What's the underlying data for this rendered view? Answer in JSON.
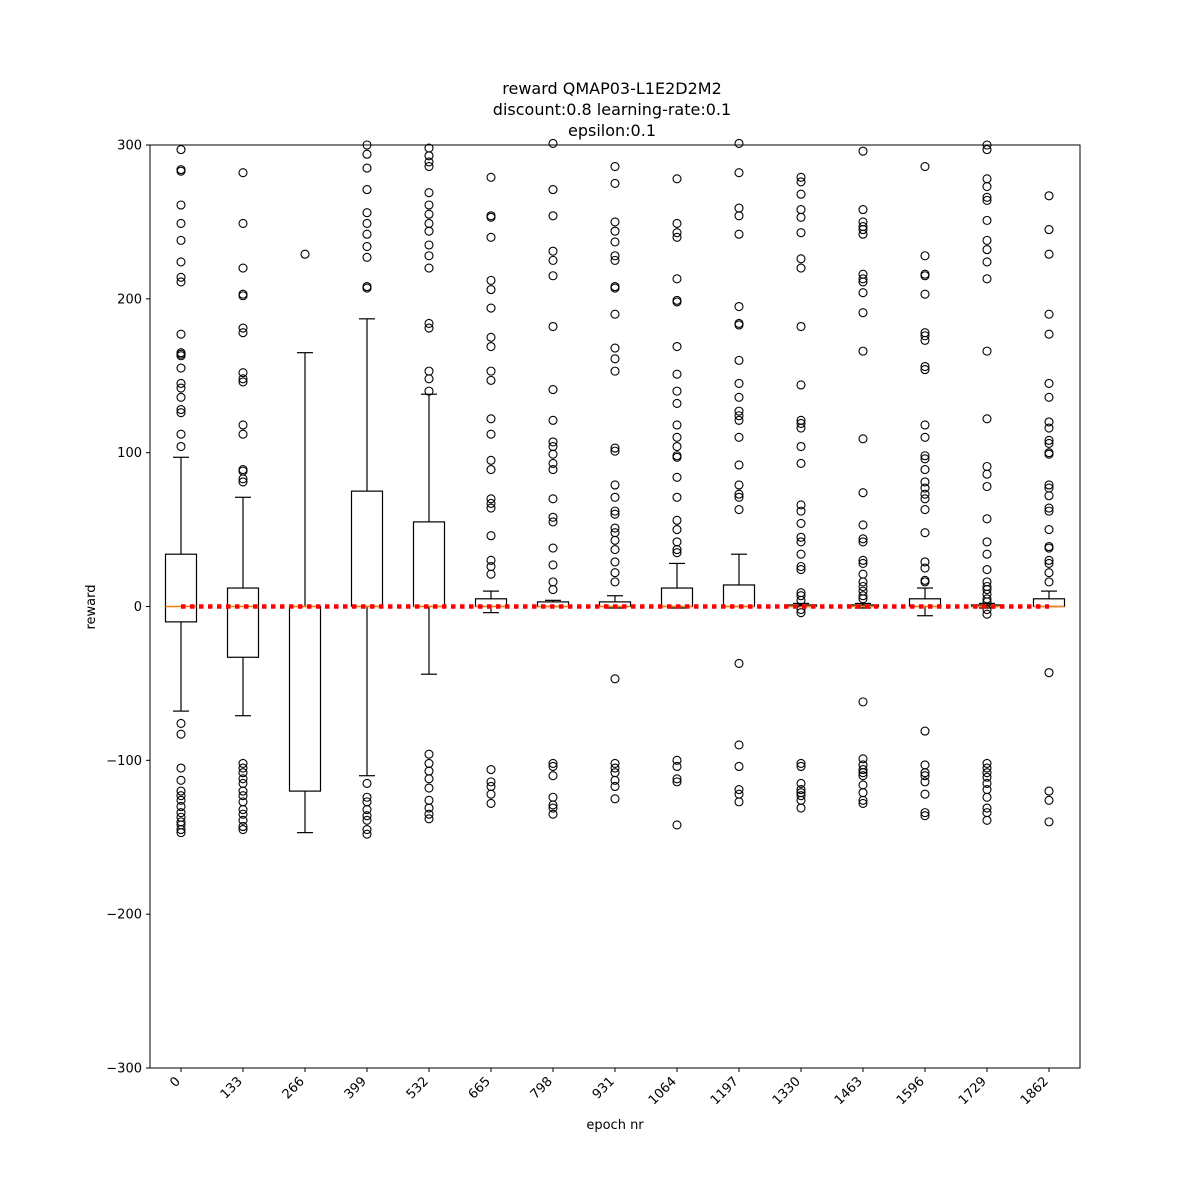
{
  "chart_data": {
    "type": "box",
    "title": [
      "reward QMAP03-L1E2D2M2",
      "discount:0.8 learning-rate:0.1",
      "epsilon:0.1"
    ],
    "xlabel": "epoch nr",
    "ylabel": "reward",
    "ylim": [
      -300,
      300
    ],
    "yticks": [
      -300,
      -200,
      -100,
      0,
      100,
      200,
      300
    ],
    "ytick_labels": [
      "−300",
      "−200",
      "−100",
      "0",
      "100",
      "200",
      "300"
    ],
    "categories": [
      "0",
      "133",
      "266",
      "399",
      "532",
      "665",
      "798",
      "931",
      "1064",
      "1197",
      "1330",
      "1463",
      "1596",
      "1729",
      "1862"
    ],
    "boxes": [
      {
        "q1": -10,
        "median": 0,
        "q3": 34,
        "whisker_low": -68,
        "whisker_high": 97,
        "fliers": [
          297,
          284,
          283,
          261,
          249,
          238,
          224,
          214,
          211,
          177,
          165,
          164,
          163,
          155,
          145,
          142,
          136,
          128,
          126,
          112,
          104,
          -76,
          -83,
          -105,
          -113,
          -120,
          -123,
          -126,
          -130,
          -134,
          -137,
          -140,
          -142,
          -145,
          -147
        ]
      },
      {
        "q1": -33,
        "median": 0,
        "q3": 12,
        "whisker_low": -71,
        "whisker_high": 71,
        "fliers": [
          282,
          249,
          220,
          203,
          202,
          181,
          178,
          152,
          148,
          146,
          118,
          112,
          89,
          88,
          83,
          81,
          -102,
          -105,
          -108,
          -112,
          -115,
          -120,
          -123,
          -127,
          -132,
          -135,
          -139,
          -143,
          -145
        ]
      },
      {
        "q1": -120,
        "median": 0,
        "q3": 0,
        "whisker_low": -147,
        "whisker_high": 165,
        "fliers": [
          229
        ]
      },
      {
        "q1": 0,
        "median": 0,
        "q3": 75,
        "whisker_low": -110,
        "whisker_high": 187,
        "fliers": [
          300,
          294,
          285,
          271,
          256,
          249,
          242,
          234,
          227,
          208,
          207,
          -115,
          -124,
          -127,
          -132,
          -136,
          -139,
          -145,
          -148
        ]
      },
      {
        "q1": 0,
        "median": 0,
        "q3": 55,
        "whisker_low": -44,
        "whisker_high": 138,
        "fliers": [
          298,
          293,
          289,
          286,
          269,
          261,
          255,
          249,
          244,
          235,
          228,
          220,
          184,
          181,
          153,
          148,
          140,
          -96,
          -102,
          -107,
          -112,
          -118,
          -126,
          -131,
          -135,
          -138
        ]
      },
      {
        "q1": 0,
        "median": 0,
        "q3": 5,
        "whisker_low": -4,
        "whisker_high": 10,
        "fliers": [
          279,
          254,
          253,
          240,
          212,
          206,
          194,
          175,
          169,
          153,
          147,
          122,
          112,
          95,
          89,
          70,
          67,
          64,
          46,
          30,
          26,
          21,
          -106,
          -114,
          -117,
          -122,
          -128
        ]
      },
      {
        "q1": 0,
        "median": 0,
        "q3": 3,
        "whisker_low": 0,
        "whisker_high": 4,
        "fliers": [
          301,
          271,
          254,
          231,
          225,
          215,
          182,
          141,
          121,
          107,
          104,
          99,
          93,
          89,
          70,
          58,
          55,
          38,
          27,
          16,
          11,
          -102,
          -104,
          -110,
          -124,
          -129,
          -131,
          -135
        ]
      },
      {
        "q1": 0,
        "median": 0,
        "q3": 3,
        "whisker_low": -1,
        "whisker_high": 7,
        "fliers": [
          286,
          275,
          250,
          244,
          237,
          228,
          225,
          208,
          207,
          190,
          168,
          161,
          153,
          103,
          101,
          79,
          71,
          62,
          60,
          51,
          48,
          43,
          37,
          29,
          22,
          16,
          -47,
          -102,
          -105,
          -108,
          -113,
          -117,
          -125
        ]
      },
      {
        "q1": 0,
        "median": 0,
        "q3": 12,
        "whisker_low": -1,
        "whisker_high": 28,
        "fliers": [
          278,
          249,
          243,
          240,
          213,
          199,
          198,
          169,
          151,
          140,
          132,
          118,
          110,
          104,
          98,
          97,
          84,
          71,
          56,
          50,
          42,
          37,
          35,
          -100,
          -104,
          -112,
          -114,
          -142
        ]
      },
      {
        "q1": 0,
        "median": 0,
        "q3": 14,
        "whisker_low": 0,
        "whisker_high": 34,
        "fliers": [
          301,
          282,
          259,
          254,
          242,
          195,
          184,
          183,
          160,
          145,
          136,
          127,
          124,
          121,
          110,
          92,
          79,
          73,
          71,
          63,
          -37,
          -90,
          -104,
          -119,
          -122,
          -127
        ]
      },
      {
        "q1": 0,
        "median": 0,
        "q3": 1,
        "whisker_low": 0,
        "whisker_high": 2,
        "fliers": [
          279,
          276,
          268,
          258,
          253,
          243,
          226,
          220,
          182,
          144,
          121,
          119,
          116,
          104,
          93,
          66,
          62,
          54,
          45,
          42,
          34,
          26,
          24,
          9,
          7,
          4,
          -2,
          -4,
          -102,
          -104,
          -115,
          -119,
          -121,
          -123,
          -126,
          -131
        ]
      },
      {
        "q1": 0,
        "median": 0,
        "q3": 1,
        "whisker_low": -1,
        "whisker_high": 2,
        "fliers": [
          296,
          258,
          250,
          247,
          245,
          242,
          216,
          213,
          211,
          204,
          191,
          166,
          109,
          74,
          53,
          44,
          42,
          30,
          28,
          21,
          16,
          13,
          10,
          7,
          5,
          -62,
          -99,
          -103,
          -106,
          -108,
          -110,
          -116,
          -121,
          -126,
          -128
        ]
      },
      {
        "q1": 0,
        "median": 0,
        "q3": 5,
        "whisker_low": -6,
        "whisker_high": 12,
        "fliers": [
          286,
          228,
          216,
          215,
          203,
          178,
          176,
          173,
          156,
          154,
          118,
          110,
          98,
          96,
          89,
          81,
          77,
          73,
          70,
          63,
          48,
          29,
          25,
          17,
          16,
          -81,
          -103,
          -108,
          -110,
          -114,
          -122,
          -134,
          -136
        ]
      },
      {
        "q1": 0,
        "median": 0,
        "q3": 1,
        "whisker_low": -1,
        "whisker_high": 2,
        "fliers": [
          300,
          297,
          278,
          273,
          266,
          264,
          251,
          238,
          232,
          224,
          213,
          166,
          122,
          91,
          86,
          78,
          57,
          42,
          34,
          24,
          16,
          13,
          11,
          8,
          5,
          3,
          -2,
          -5,
          -102,
          -105,
          -108,
          -111,
          -115,
          -119,
          -124,
          -131,
          -134,
          -139
        ]
      },
      {
        "q1": 0,
        "median": 0,
        "q3": 5,
        "whisker_low": 0,
        "whisker_high": 10,
        "fliers": [
          267,
          245,
          229,
          190,
          177,
          145,
          136,
          120,
          116,
          108,
          106,
          100,
          99,
          79,
          77,
          72,
          64,
          62,
          50,
          39,
          38,
          30,
          28,
          22,
          16,
          -43,
          -120,
          -126,
          -140
        ]
      }
    ],
    "reference_line": {
      "y": 0,
      "color": "#ff0000",
      "style": "dotted"
    },
    "colors": {
      "box": "#000000",
      "median": "#ff7f0e",
      "reference": "#ff0000"
    },
    "grid": false,
    "legend": "none"
  }
}
